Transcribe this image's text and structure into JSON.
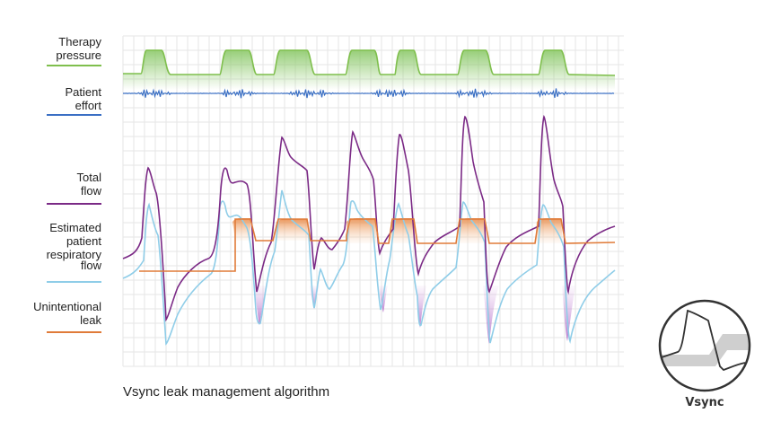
{
  "legend": {
    "therapy_pressure": {
      "lines": [
        "Therapy",
        "pressure"
      ],
      "color": "#7fbf4d"
    },
    "patient_effort": {
      "lines": [
        "Patient",
        "effort"
      ],
      "color": "#3a6fc4"
    },
    "total_flow": {
      "lines": [
        "Total",
        "flow"
      ],
      "color": "#7b2a86"
    },
    "estimated_flow": {
      "lines": [
        "Estimated",
        "patient",
        "respiratory",
        "flow"
      ],
      "color": "#8fcde8"
    },
    "unintentional_leak": {
      "lines": [
        "Unintentional",
        "leak"
      ],
      "color": "#e07b39"
    }
  },
  "caption": "Vsync leak management algorithm",
  "badge": {
    "label": "Vsync"
  },
  "colors": {
    "grid": "#e6e6e6",
    "pressure_fill": "#a8d58a",
    "leak_fill": "#f2b27a",
    "valley_fill": "#c98ad8"
  }
}
